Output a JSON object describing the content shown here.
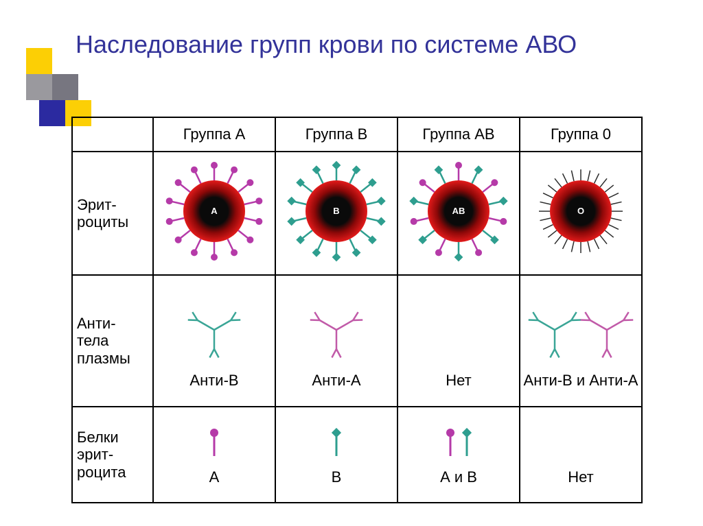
{
  "title": "Наследование групп крови по системе АВО",
  "decor": {
    "yellow": "#fccf05",
    "gray1": "#9a999e",
    "gray2": "#777680",
    "blue": "#2b2aa0",
    "square_size": 38
  },
  "colors": {
    "cell_red_outer": "#e21a1a",
    "cell_red_mid": "#8c0808",
    "cell_dark": "#0a0a0a",
    "antigen_a": "#b53aa8",
    "antigen_b": "#2e9e8f",
    "antigen_none": "#2a2a2a",
    "antibody_a": "#c15aa8",
    "antibody_b": "#3aa596",
    "label_text": "#ffffff",
    "title_color": "#333399"
  },
  "cell": {
    "radius": 45,
    "label_fontsize": 13
  },
  "columns": [
    {
      "header": "Группа А",
      "cell_label": "A",
      "antigens": [
        "a"
      ],
      "antibody_label": "Анти-В",
      "antibodies": [
        "b"
      ],
      "protein_label": "А",
      "proteins": [
        "a"
      ]
    },
    {
      "header": "Группа В",
      "cell_label": "B",
      "antigens": [
        "b"
      ],
      "antibody_label": "Анти-А",
      "antibodies": [
        "a"
      ],
      "protein_label": "В",
      "proteins": [
        "b"
      ]
    },
    {
      "header": "Группа АВ",
      "cell_label": "AB",
      "antigens": [
        "a",
        "b"
      ],
      "antibody_label": "Нет",
      "antibodies": [],
      "protein_label": "А и В",
      "proteins": [
        "a",
        "b"
      ]
    },
    {
      "header": "Группа 0",
      "cell_label": "O",
      "antigens": [
        "none"
      ],
      "antibody_label": "Анти-В и Анти-А",
      "antibodies": [
        "b",
        "a"
      ],
      "protein_label": "Нет",
      "proteins": []
    }
  ],
  "rows": {
    "erythrocytes": "Эрит-\nроциты",
    "antibodies": "Анти-\nтела\nплазмы",
    "proteins": "Белки\nэрит-\nроцита"
  }
}
